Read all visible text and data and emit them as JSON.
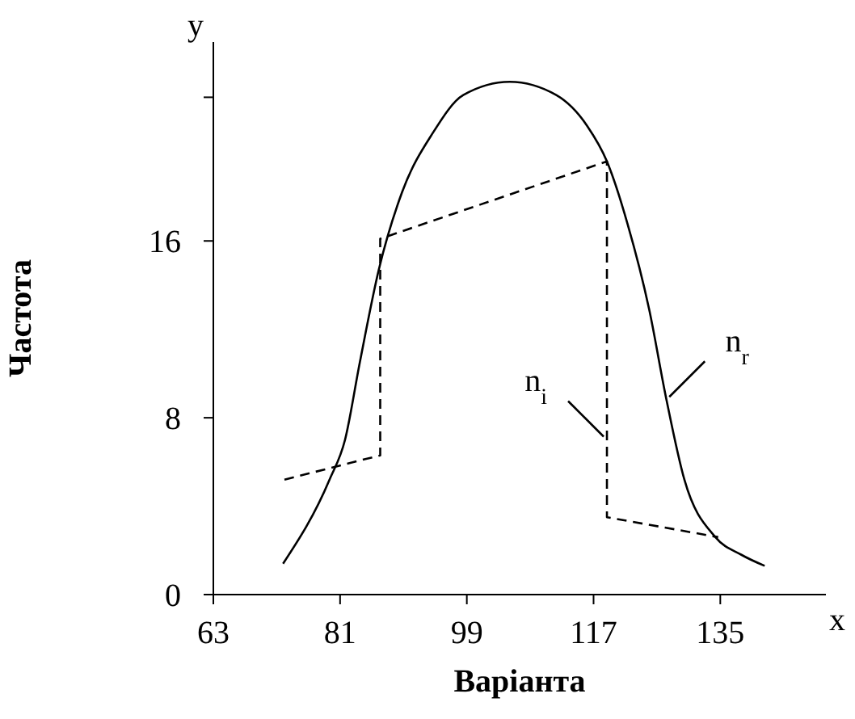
{
  "chart_data": {
    "type": "line",
    "xlabel": "Варіанта",
    "ylabel": "Частота",
    "xlim": [
      63,
      150
    ],
    "ylim": [
      0,
      25
    ],
    "xticks": [
      63,
      81,
      99,
      117,
      135
    ],
    "yticks": [
      0,
      8,
      16,
      {
        "value": 22.5,
        "label": null
      }
    ],
    "marker": "none",
    "annotations": [
      "y",
      "x",
      {
        "text": "n$_{i}$",
        "x": 118.9,
        "y": 7
      },
      {
        "text": "n$_{r}$",
        "x": 127.3,
        "y": 8.8
      }
    ],
    "series": [
      {
        "color": "#000000",
        "line_style": "dashed",
        "x": [
          73.1,
          86.7,
          86.7,
          118.9,
          118.9,
          134.7
        ],
        "values": [
          5.2,
          6.3,
          16.1,
          19.6,
          3.5,
          2.6
        ]
      },
      {
        "color": "#000000",
        "line_style": "solid",
        "x": [
          72.9,
          79.5,
          81.7,
          83.8,
          86.5,
          89.8,
          94.2,
          98.5,
          105.1,
          111.7,
          116.1,
          118.9,
          121.8,
          124.9,
          127.3,
          129.9,
          134.3,
          138,
          141.3
        ],
        "values": [
          1.4,
          5.2,
          7.0,
          10.5,
          14.7,
          18.2,
          20.9,
          22.6,
          23.2,
          22.6,
          21.2,
          19.6,
          16.8,
          12.9,
          8.9,
          5.2,
          2.6,
          1.8,
          1.3
        ]
      }
    ]
  }
}
